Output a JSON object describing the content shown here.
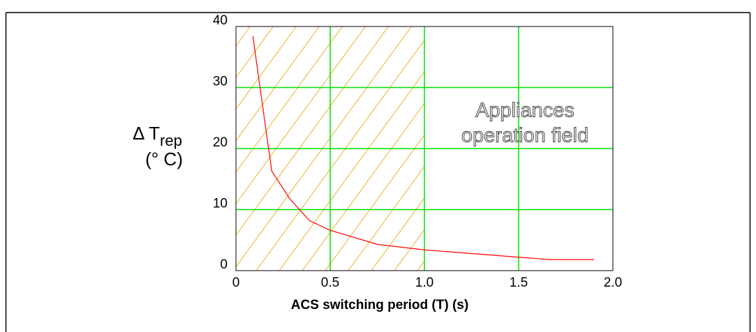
{
  "chart_data": {
    "type": "line",
    "x": [
      0.09,
      0.13,
      0.19,
      0.285,
      0.39,
      0.5,
      0.75,
      1.0,
      1.5,
      1.67,
      1.9
    ],
    "values": [
      38.4,
      29.5,
      16.3,
      11.8,
      8.2,
      6.6,
      4.3,
      3.4,
      2.2,
      1.8,
      1.8
    ],
    "color": "#ff0000",
    "xlim": [
      0,
      2.0
    ],
    "ylim": [
      0,
      40
    ],
    "xticks": [
      0,
      0.5,
      {
        "value": 1.0,
        "label": "1.0"
      },
      1.5,
      {
        "value": 2.0,
        "label": "2.0"
      }
    ],
    "yticks": [
      0,
      10,
      20,
      30,
      40
    ],
    "grid": true,
    "grid_color": "#00e000",
    "shaded_xrange": [
      0,
      1.0
    ],
    "shade_color": "#f0b030",
    "xlabel": "ACS switching period (T) (s)",
    "ylabel": {
      "main": "Δ T",
      "sub": "rep",
      "unit": "(° C)"
    },
    "annotation": [
      "Appliances",
      "operation field"
    ]
  }
}
